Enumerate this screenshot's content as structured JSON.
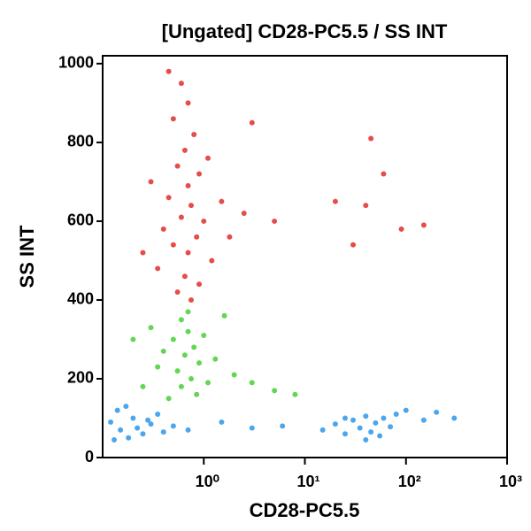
{
  "chart_data": {
    "type": "scatter",
    "title": "[Ungated] CD28-PC5.5 / SS INT",
    "x_label": "CD28-PC5.5",
    "y_label": "SS INT",
    "xscale": "log",
    "xlim": [
      0.1,
      1000
    ],
    "ylim": [
      0,
      1020
    ],
    "xticks": [
      {
        "value": 1,
        "label": "10⁰"
      },
      {
        "value": 10,
        "label": "10¹"
      },
      {
        "value": 100,
        "label": "10²"
      },
      {
        "value": 1000,
        "label": "10³"
      }
    ],
    "yticks": [
      0,
      200,
      400,
      600,
      800,
      1000
    ],
    "series": [
      {
        "color": "#e0201c",
        "x": [
          0.6,
          0.7,
          0.5,
          0.8,
          0.65,
          0.55,
          0.9,
          0.7,
          0.45,
          0.75,
          0.6,
          1.0,
          0.4,
          0.85,
          0.5,
          0.7,
          1.2,
          0.35,
          0.65,
          0.9,
          0.55,
          0.75,
          1.5,
          0.3,
          1.8,
          2.5,
          3,
          0.45,
          1.1,
          0.25,
          5,
          20,
          40,
          90,
          150,
          45,
          30,
          60
        ],
        "values": [
          950,
          900,
          860,
          820,
          780,
          740,
          720,
          690,
          660,
          640,
          610,
          600,
          580,
          560,
          540,
          520,
          500,
          480,
          460,
          440,
          420,
          400,
          650,
          700,
          560,
          620,
          850,
          980,
          760,
          520,
          600,
          650,
          640,
          580,
          590,
          810,
          540,
          720
        ]
      },
      {
        "color": "#3ccc2a",
        "x": [
          0.6,
          0.7,
          0.5,
          0.8,
          0.65,
          0.9,
          0.55,
          0.75,
          0.4,
          1.0,
          1.3,
          0.3,
          0.6,
          0.85,
          2,
          3,
          1.6,
          0.35,
          0.25,
          5,
          8,
          0.2,
          1.1,
          0.45,
          0.7
        ],
        "values": [
          350,
          320,
          300,
          280,
          260,
          240,
          220,
          200,
          270,
          310,
          250,
          330,
          180,
          160,
          210,
          190,
          360,
          230,
          180,
          170,
          160,
          300,
          190,
          150,
          370
        ]
      },
      {
        "color": "#1e90e8",
        "x": [
          0.12,
          0.15,
          0.2,
          0.25,
          0.3,
          0.14,
          0.18,
          0.35,
          0.22,
          0.4,
          0.13,
          0.28,
          0.5,
          0.17,
          0.7,
          1.5,
          3,
          6,
          15,
          20,
          25,
          30,
          35,
          40,
          45,
          50,
          60,
          70,
          80,
          25,
          55,
          100,
          150,
          200,
          300,
          40
        ],
        "values": [
          90,
          70,
          100,
          60,
          85,
          120,
          50,
          110,
          75,
          65,
          45,
          95,
          80,
          130,
          70,
          90,
          75,
          80,
          70,
          85,
          60,
          95,
          75,
          105,
          65,
          88,
          100,
          78,
          110,
          100,
          55,
          120,
          95,
          115,
          100,
          45
        ]
      }
    ]
  }
}
